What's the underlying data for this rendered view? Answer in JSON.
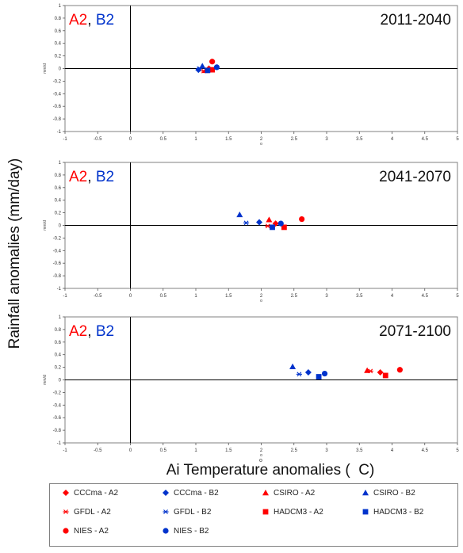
{
  "figure": {
    "ylabel": "Rainfall anomalies (mm/day)",
    "xlabel": "Ai Temperature anomalies (  C)",
    "degree_mark": "o",
    "panel_tag_a2": "A2",
    "panel_tag_sep": ",",
    "panel_tag_b2": "B2",
    "colors": {
      "a2": "#ff0000",
      "b2": "#0033cc",
      "axis": "#000000",
      "frame": "#808080"
    }
  },
  "chart_data": [
    {
      "type": "scatter",
      "title": "2011-2040",
      "xlim": [
        -1,
        5
      ],
      "ylim": [
        -1,
        1
      ],
      "x_ticks": [
        "-1",
        "-0.5",
        "0",
        "0.5",
        "1",
        "1.5",
        "2",
        "2.5",
        "3",
        "3.5",
        "4",
        "4.5",
        "5"
      ],
      "y_ticks": [
        "1",
        "0.8",
        "0.6",
        "0.4",
        "0.2",
        "0",
        "-0.2",
        "-0.4",
        "-0.6",
        "-0.8",
        "-1"
      ],
      "axis_unit_x": "o",
      "axis_unit_y": "mm/d",
      "points": [
        {
          "series": "CCCma - A2",
          "x": 1.2,
          "y": 0.0
        },
        {
          "series": "CCCma - B2",
          "x": 1.04,
          "y": -0.02
        },
        {
          "series": "CSIRO - A2",
          "x": 1.15,
          "y": -0.03
        },
        {
          "series": "CSIRO - B2",
          "x": 1.1,
          "y": 0.04
        },
        {
          "series": "GFDL - A2",
          "x": 1.12,
          "y": -0.04
        },
        {
          "series": "GFDL - B2",
          "x": 1.05,
          "y": 0.0
        },
        {
          "series": "HADCM3 - A2",
          "x": 1.25,
          "y": -0.02
        },
        {
          "series": "HADCM3 - B2",
          "x": 1.18,
          "y": -0.03
        },
        {
          "series": "NIES - A2",
          "x": 1.25,
          "y": 0.11
        },
        {
          "series": "NIES - B2",
          "x": 1.32,
          "y": 0.02
        }
      ]
    },
    {
      "type": "scatter",
      "title": "2041-2070",
      "xlim": [
        -1,
        5
      ],
      "ylim": [
        -1,
        1
      ],
      "x_ticks": [
        "-1",
        "-0.5",
        "0",
        "0.5",
        "1",
        "1.5",
        "2",
        "2.5",
        "3",
        "3.5",
        "4",
        "4.5",
        "5"
      ],
      "y_ticks": [
        "1",
        "0.8",
        "0.6",
        "0.4",
        "0.2",
        "0",
        "-0.2",
        "-0.4",
        "-0.6",
        "-0.8",
        "-1"
      ],
      "axis_unit_x": "o",
      "axis_unit_y": "mm/d",
      "points": [
        {
          "series": "CCCma - A2",
          "x": 2.22,
          "y": 0.03
        },
        {
          "series": "CCCma - B2",
          "x": 1.97,
          "y": 0.05
        },
        {
          "series": "CSIRO - A2",
          "x": 2.12,
          "y": 0.09
        },
        {
          "series": "CSIRO - B2",
          "x": 1.67,
          "y": 0.17
        },
        {
          "series": "GFDL - A2",
          "x": 2.1,
          "y": -0.01
        },
        {
          "series": "GFDL - B2",
          "x": 1.77,
          "y": 0.04
        },
        {
          "series": "HADCM3 - A2",
          "x": 2.35,
          "y": -0.03
        },
        {
          "series": "HADCM3 - B2",
          "x": 2.17,
          "y": -0.03
        },
        {
          "series": "NIES - A2",
          "x": 2.62,
          "y": 0.1
        },
        {
          "series": "NIES - B2",
          "x": 2.3,
          "y": 0.03
        }
      ]
    },
    {
      "type": "scatter",
      "title": "2071-2100",
      "xlim": [
        -1,
        5
      ],
      "ylim": [
        -1,
        1
      ],
      "x_ticks": [
        "-1",
        "-0.5",
        "0",
        "0.5",
        "1",
        "1.5",
        "2",
        "2.5",
        "3",
        "3.5",
        "4",
        "4.5",
        "5"
      ],
      "y_ticks": [
        "1",
        "0.8",
        "0.6",
        "0.4",
        "0.2",
        "0",
        "-0.2",
        "-0.4",
        "-0.6",
        "-0.8",
        "-1"
      ],
      "axis_unit_x": "o",
      "axis_unit_y": "mm/d",
      "points": [
        {
          "series": "CCCma - A2",
          "x": 3.82,
          "y": 0.12
        },
        {
          "series": "CCCma - B2",
          "x": 2.72,
          "y": 0.12
        },
        {
          "series": "CSIRO - A2",
          "x": 3.62,
          "y": 0.15
        },
        {
          "series": "CSIRO - B2",
          "x": 2.48,
          "y": 0.21
        },
        {
          "series": "GFDL - A2",
          "x": 3.67,
          "y": 0.14
        },
        {
          "series": "GFDL - B2",
          "x": 2.58,
          "y": 0.09
        },
        {
          "series": "HADCM3 - A2",
          "x": 3.9,
          "y": 0.07
        },
        {
          "series": "HADCM3 - B2",
          "x": 2.88,
          "y": 0.05
        },
        {
          "series": "NIES - A2",
          "x": 4.12,
          "y": 0.16
        },
        {
          "series": "NIES - B2",
          "x": 2.97,
          "y": 0.1
        }
      ]
    }
  ],
  "legend": {
    "placement": "bottom",
    "items": [
      {
        "label": "CCCma - A2",
        "marker": "diamond",
        "color": "#ff0000"
      },
      {
        "label": "CCCma - B2",
        "marker": "diamond",
        "color": "#0033cc"
      },
      {
        "label": "CSIRO - A2",
        "marker": "triangle",
        "color": "#ff0000"
      },
      {
        "label": "CSIRO - B2",
        "marker": "triangle",
        "color": "#0033cc"
      },
      {
        "label": "GFDL - A2",
        "marker": "asterisk",
        "color": "#ff0000"
      },
      {
        "label": "GFDL - B2",
        "marker": "asterisk",
        "color": "#0033cc"
      },
      {
        "label": "HADCM3 - A2",
        "marker": "square",
        "color": "#ff0000"
      },
      {
        "label": "HADCM3 - B2",
        "marker": "square",
        "color": "#0033cc"
      },
      {
        "label": "NIES - A2",
        "marker": "circle",
        "color": "#ff0000"
      },
      {
        "label": "NIES - B2",
        "marker": "circle",
        "color": "#0033cc"
      }
    ]
  }
}
